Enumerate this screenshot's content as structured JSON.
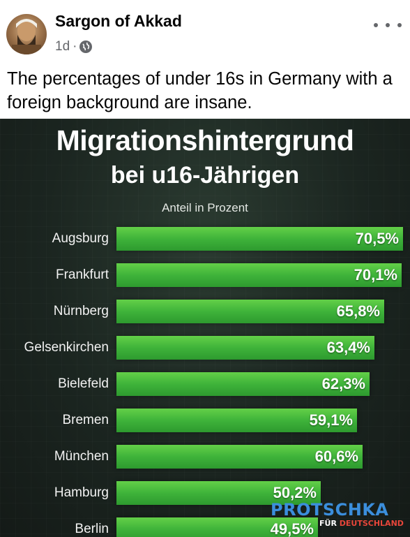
{
  "post": {
    "author": "Sargon of Akkad",
    "time": "1d",
    "separator": "·",
    "privacy_icon": "globe-icon",
    "more_icon": "more-options-icon",
    "text": "The percentages of under 16s in Germany with a foreign background are insane."
  },
  "chart_data": {
    "type": "bar",
    "orientation": "horizontal",
    "title": "Migrationshintergrund",
    "subtitle": "bei u16-Jährigen",
    "unit_label": "Anteil in Prozent",
    "categories": [
      "Augsburg",
      "Frankfurt",
      "Nürnberg",
      "Gelsenkirchen",
      "Bielefeld",
      "Bremen",
      "München",
      "Hamburg",
      "Berlin"
    ],
    "values": [
      70.5,
      70.1,
      65.8,
      63.4,
      62.3,
      59.1,
      60.6,
      50.2,
      49.5
    ],
    "value_labels": [
      "70,5%",
      "70,1%",
      "65,8%",
      "63,4%",
      "62,3%",
      "59,1%",
      "60,6%",
      "50,2%",
      "49,5%"
    ],
    "xlim": [
      0,
      100
    ],
    "bar_color": "#3fb33a",
    "background_color": "#1b2520",
    "grid": false,
    "legend": "none"
  },
  "logo": {
    "main": "PROTSCHKA",
    "sub_prefix": "FÜR",
    "sub_accent": "DEUTSCHLAND"
  }
}
